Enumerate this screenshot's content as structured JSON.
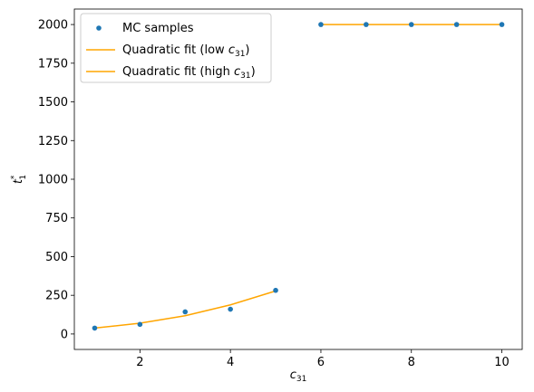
{
  "chart_data": {
    "type": "scatter",
    "xlabel": "c",
    "xlabel_sub": "31",
    "ylabel": "t",
    "ylabel_sub": "1",
    "ylabel_sup": "*",
    "xlim": [
      0.55,
      10.45
    ],
    "ylim": [
      -100,
      2100
    ],
    "xticks": [
      2,
      4,
      6,
      8,
      10
    ],
    "yticks": [
      0,
      250,
      500,
      750,
      1000,
      1250,
      1500,
      1750,
      2000
    ],
    "grid": false,
    "legend_position": "upper-left",
    "scatter_series": {
      "name": "MC samples",
      "color": "#1f77b4",
      "x": [
        1,
        2,
        3,
        4,
        5,
        6,
        7,
        8,
        9,
        10
      ],
      "y": [
        38,
        62,
        143,
        160,
        282,
        2000,
        2000,
        2000,
        2000,
        2000
      ]
    },
    "line_series": [
      {
        "name": "Quadratic fit (low c31)",
        "label_main": "Quadratic fit (low ",
        "label_var": "c",
        "label_sub": "31",
        "label_end": ")",
        "color": "#ffa500",
        "x": [
          1,
          2,
          3,
          4,
          5
        ],
        "y": [
          38,
          70,
          118,
          188,
          278
        ]
      },
      {
        "name": "Quadratic fit (high c31)",
        "label_main": "Quadratic fit (high ",
        "label_var": "c",
        "label_sub": "31",
        "label_end": ")",
        "color": "#ffa500",
        "x": [
          6,
          7,
          8,
          9,
          10
        ],
        "y": [
          2000,
          2000,
          2000,
          2000,
          2000
        ]
      }
    ]
  }
}
